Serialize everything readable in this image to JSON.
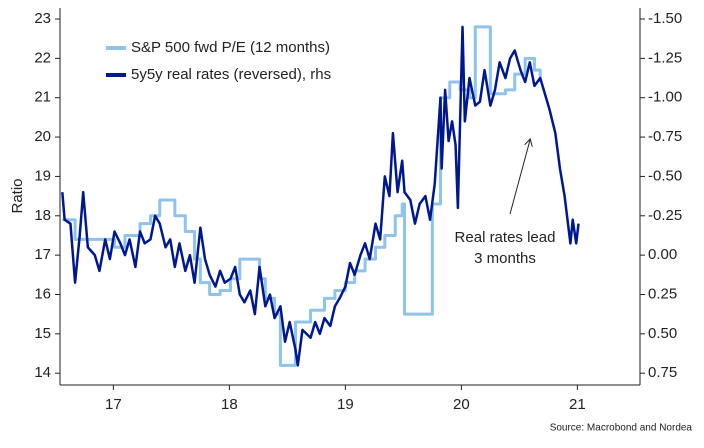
{
  "chart_data": {
    "type": "line",
    "step_series": [
      0
    ],
    "ylabel": "Ratio",
    "xlim": [
      2016.54,
      2021.54
    ],
    "xticks": [
      {
        "value": 2017,
        "label": "17"
      },
      {
        "value": 2018,
        "label": "18"
      },
      {
        "value": 2019,
        "label": "19"
      },
      {
        "value": 2020,
        "label": "20"
      },
      {
        "value": 2021,
        "label": "21"
      }
    ],
    "ylim": [
      13.7,
      23.28
    ],
    "yticks": [
      14,
      15,
      16,
      17,
      18,
      19,
      20,
      21,
      22,
      23
    ],
    "y2lim": [
      0.825,
      -1.57
    ],
    "y2ticks": [
      {
        "value": -1.5,
        "label": "-1.50"
      },
      -1.25,
      {
        "value": -1,
        "label": "-1.00"
      },
      -0.75,
      {
        "value": -0.5,
        "label": "-0.50"
      },
      -0.25,
      {
        "value": 0,
        "label": "0.00"
      },
      0.25,
      {
        "value": 0.5,
        "label": "0.50"
      },
      0.75
    ],
    "legend": "upper left",
    "annotation": [
      "Real rates lead",
      "3 months"
    ],
    "source": "Source: Macrobond and Nordea",
    "series": [
      {
        "name": "S&P 500 fwd P/E (12 months)",
        "color": "#8fc3ea",
        "axis": "y",
        "x": [
          2016.56,
          2016.67,
          2016.88,
          2017.01,
          2017.1,
          2017.23,
          2017.32,
          2017.4,
          2017.53,
          2017.62,
          2017.7,
          2017.75,
          2017.83,
          2017.92,
          2018.01,
          2018.09,
          2018.22,
          2018.26,
          2018.31,
          2018.39,
          2018.44,
          2018.52,
          2018.57,
          2018.7,
          2018.82,
          2018.91,
          2019.0,
          2019.08,
          2019.17,
          2019.26,
          2019.34,
          2019.43,
          2019.49,
          2019.51,
          2019.75,
          2019.82,
          2019.9,
          2019.99,
          2020.07,
          2020.12,
          2020.22,
          2020.25,
          2020.38,
          2020.46,
          2020.55,
          2020.63,
          2020.68
        ],
        "values": [
          17.9,
          17.4,
          17.4,
          17.2,
          17.5,
          17.8,
          18.0,
          18.4,
          18.0,
          17.6,
          16.9,
          16.3,
          16.0,
          16.1,
          16.4,
          16.9,
          16.9,
          16.4,
          15.9,
          15.5,
          14.2,
          14.2,
          15.3,
          15.6,
          15.9,
          16.1,
          16.3,
          16.6,
          16.9,
          17.2,
          17.5,
          18.0,
          18.3,
          15.5,
          18.3,
          21.0,
          21.4,
          21.2,
          21.0,
          22.8,
          22.8,
          21.1,
          21.2,
          21.6,
          22.0,
          21.7,
          21.4
        ]
      },
      {
        "name": "5y5y real rates (reversed), rhs",
        "color": "#00188f",
        "axis": "y2",
        "x": [
          2016.56,
          2016.58,
          2016.63,
          2016.67,
          2016.71,
          2016.74,
          2016.78,
          2016.84,
          2016.88,
          2016.93,
          2016.97,
          2017.01,
          2017.06,
          2017.1,
          2017.14,
          2017.19,
          2017.23,
          2017.27,
          2017.32,
          2017.36,
          2017.4,
          2017.45,
          2017.49,
          2017.53,
          2017.57,
          2017.62,
          2017.66,
          2017.7,
          2017.75,
          2017.79,
          2017.83,
          2017.88,
          2017.92,
          2017.96,
          2018.01,
          2018.05,
          2018.09,
          2018.13,
          2018.18,
          2018.22,
          2018.26,
          2018.31,
          2018.35,
          2018.39,
          2018.44,
          2018.48,
          2018.52,
          2018.57,
          2018.59,
          2018.63,
          2018.7,
          2018.74,
          2018.78,
          2018.82,
          2018.87,
          2018.91,
          2018.95,
          2019.0,
          2019.04,
          2019.08,
          2019.13,
          2019.17,
          2019.21,
          2019.26,
          2019.3,
          2019.34,
          2019.38,
          2019.41,
          2019.45,
          2019.49,
          2019.51,
          2019.56,
          2019.6,
          2019.64,
          2019.69,
          2019.73,
          2019.77,
          2019.82,
          2019.83,
          2019.86,
          2019.89,
          2019.92,
          2019.95,
          2019.97,
          2020.01,
          2020.03,
          2020.07,
          2020.12,
          2020.16,
          2020.2,
          2020.25,
          2020.29,
          2020.33,
          2020.38,
          2020.42,
          2020.46,
          2020.51,
          2020.55,
          2020.59,
          2020.63,
          2020.68,
          2020.72,
          2020.76,
          2020.81,
          2020.85,
          2020.89,
          2020.94,
          2020.96,
          2020.99,
          2021.01
        ],
        "values": [
          -0.4,
          -0.225,
          -0.2,
          0.175,
          -0.125,
          -0.4,
          -0.05,
          0,
          0.1,
          -0.1,
          0.025,
          -0.15,
          -0.075,
          0,
          -0.1,
          0.075,
          -0.15,
          -0.075,
          -0.1,
          -0.25,
          -0.2,
          -0.05,
          -0.1,
          0.075,
          -0.075,
          0.1,
          0,
          0.175,
          -0.175,
          0.025,
          0.125,
          0.2,
          0.1,
          0.175,
          0.15,
          0.075,
          0.25,
          0.3,
          0.225,
          0.375,
          0.075,
          0.325,
          0.25,
          0.4,
          0.325,
          0.55,
          0.425,
          0.6,
          0.7,
          0.475,
          0.525,
          0.425,
          0.5,
          0.4,
          0.45,
          0.325,
          0.275,
          0.2,
          0.05,
          0.125,
          0,
          -0.075,
          0.025,
          -0.2,
          -0.1,
          -0.5,
          -0.375,
          -0.775,
          -0.4,
          -0.6,
          -0.4,
          -0.35,
          -0.2,
          -0.325,
          -0.375,
          -0.225,
          -0.45,
          -1.0,
          -0.55,
          -1.05,
          -0.725,
          -0.85,
          -0.7,
          -0.3,
          -1.45,
          -0.85,
          -1.125,
          -0.95,
          -0.975,
          -1.175,
          -0.95,
          -1.05,
          -1.225,
          -1.125,
          -1.25,
          -1.3,
          -1.175,
          -1.1,
          -1.225,
          -1.075,
          -1.125,
          -1.025,
          -0.925,
          -0.775,
          -0.55,
          -0.375,
          -0.075,
          -0.225,
          -0.075,
          -0.2
        ]
      }
    ]
  }
}
